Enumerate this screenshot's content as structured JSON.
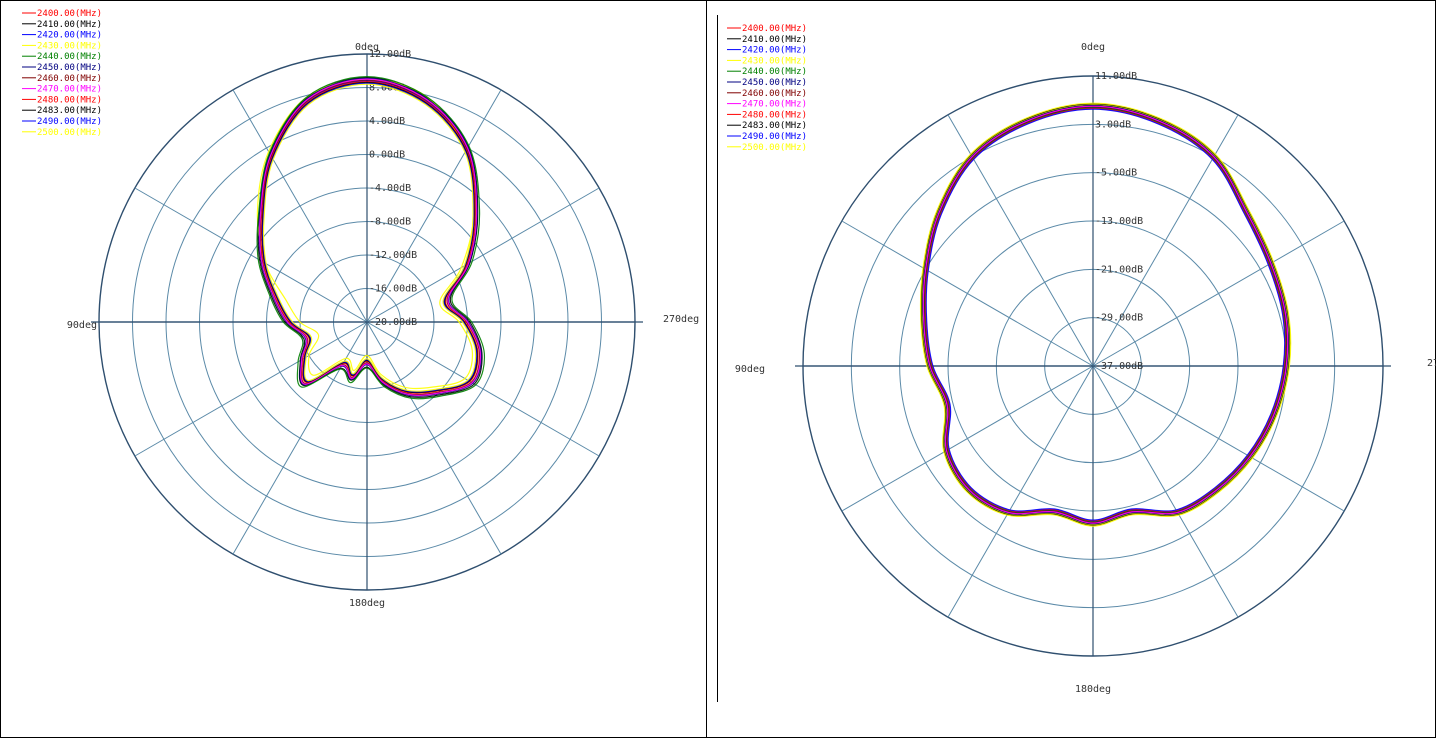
{
  "chart_data": [
    {
      "type": "polar-line",
      "angle_labels": [
        "0deg",
        "90deg",
        "180deg",
        "270deg"
      ],
      "rlabels": [
        "12.00dB",
        "8.00dB",
        "4.00dB",
        "0.00dB",
        "-4.00dB",
        "-8.00dB",
        "-12.00dB",
        "-16.00dB",
        "-20.00dB"
      ],
      "rlim": [
        -20,
        12
      ],
      "angles": [
        0,
        15,
        30,
        45,
        60,
        75,
        90,
        105,
        120,
        135,
        150,
        165,
        180,
        195,
        210,
        225,
        240,
        255,
        270,
        285,
        300,
        315,
        330,
        345
      ],
      "series": [
        {
          "name": "2400.00(MHz)",
          "color": "#ff0000",
          "values": [
            9,
            7.5,
            3,
            -2,
            -5.5,
            -8.5,
            -10.5,
            -12.5,
            -11,
            -9.5,
            -14,
            -13,
            -15,
            -12.5,
            -10,
            -8,
            -5.5,
            -6,
            -8,
            -10,
            -6,
            -1.5,
            4,
            7.5
          ]
        },
        {
          "name": "2410.00(MHz)",
          "color": "#000000",
          "values": [
            9.2,
            7.7,
            3.2,
            -1.8,
            -5.2,
            -8.2,
            -10.2,
            -12.2,
            -10.8,
            -9.3,
            -13.6,
            -12.8,
            -14.6,
            -12.2,
            -9.7,
            -7.7,
            -5.2,
            -5.8,
            -7.7,
            -9.7,
            -5.8,
            -1.3,
            4.2,
            7.7
          ]
        },
        {
          "name": "2420.00(MHz)",
          "color": "#0000ff",
          "values": [
            8.8,
            7.3,
            2.8,
            -2.3,
            -6,
            -9,
            -11,
            -13,
            -11.5,
            -10,
            -14.5,
            -13.5,
            -15.5,
            -13,
            -10.5,
            -8.5,
            -6,
            -6.5,
            -8.5,
            -10.5,
            -6.5,
            -2,
            3.8,
            7.3
          ]
        },
        {
          "name": "2430.00(MHz)",
          "color": "#ffff00",
          "values": [
            9,
            7.8,
            3.5,
            -1.5,
            -6,
            -10,
            -12,
            -14,
            -12,
            -11,
            -15,
            -14,
            -16,
            -13.5,
            -11,
            -9,
            -6.5,
            -7,
            -9,
            -11,
            -7,
            -2,
            3.5,
            7.8
          ]
        },
        {
          "name": "2440.00(MHz)",
          "color": "#008000",
          "values": [
            9.3,
            7.8,
            3.3,
            -1.7,
            -5,
            -8,
            -10,
            -12,
            -10.5,
            -9,
            -13.5,
            -12.5,
            -14.5,
            -12,
            -9.5,
            -7.5,
            -5,
            -5.5,
            -7.5,
            -9.5,
            -5.5,
            -1,
            4.3,
            7.8
          ]
        },
        {
          "name": "2450.00(MHz)",
          "color": "#000080",
          "values": [
            9.1,
            7.6,
            3.1,
            -1.9,
            -5.4,
            -8.4,
            -10.4,
            -12.4,
            -10.9,
            -9.4,
            -13.9,
            -12.9,
            -14.9,
            -12.4,
            -9.9,
            -7.9,
            -5.4,
            -5.9,
            -7.9,
            -9.9,
            -5.9,
            -1.4,
            4.1,
            7.6
          ]
        },
        {
          "name": "2460.00(MHz)",
          "color": "#800000",
          "values": [
            8.9,
            7.4,
            2.9,
            -2.1,
            -5.6,
            -8.6,
            -10.6,
            -12.6,
            -11.1,
            -9.6,
            -14.1,
            -13.1,
            -15.1,
            -12.6,
            -10.1,
            -8.1,
            -5.6,
            -6.1,
            -8.1,
            -10.1,
            -6.1,
            -1.6,
            3.9,
            7.4
          ]
        },
        {
          "name": "2470.00(MHz)",
          "color": "#ff00ff",
          "values": [
            9,
            7.5,
            3,
            -2,
            -5.5,
            -8.5,
            -10.5,
            -12.5,
            -11,
            -9.5,
            -14,
            -13,
            -15,
            -12.5,
            -10,
            -8,
            -5.5,
            -6,
            -8,
            -10,
            -6,
            -1.5,
            4,
            7.5
          ]
        },
        {
          "name": "2480.00(MHz)",
          "color": "#ff0000",
          "values": [
            8.7,
            7.2,
            2.7,
            -2.3,
            -5.8,
            -8.8,
            -10.8,
            -12.8,
            -11.3,
            -9.8,
            -14.3,
            -13.3,
            -15.3,
            -12.8,
            -10.3,
            -8.3,
            -5.8,
            -6.3,
            -8.3,
            -10.3,
            -6.3,
            -1.8,
            3.7,
            7.2
          ]
        },
        {
          "name": "2483.00(MHz)",
          "color": "#000000",
          "values": [
            8.6,
            7.1,
            2.6,
            -2.4,
            -5.9,
            -8.9,
            -10.9,
            -12.9,
            -11.4,
            -9.9,
            -14.4,
            -13.4,
            -15.4,
            -12.9,
            -10.4,
            -8.4,
            -5.9,
            -6.4,
            -8.4,
            -10.4,
            -6.4,
            -1.9,
            3.6,
            7.1
          ]
        },
        {
          "name": "2490.00(MHz)",
          "color": "#0000ff",
          "values": [
            8.5,
            7,
            2.5,
            -2.5,
            -6,
            -9,
            -11,
            -13,
            -11.5,
            -10,
            -14.5,
            -13.5,
            -15.5,
            -13,
            -10.5,
            -8.5,
            -6,
            -6.5,
            -8.5,
            -10.5,
            -6.5,
            -2,
            3.5,
            7
          ]
        },
        {
          "name": "2500.00(MHz)",
          "color": "#ffff00",
          "values": [
            8.4,
            6.9,
            2.4,
            -2.6,
            -6.1,
            -9.1,
            -11.1,
            -13.1,
            -11.6,
            -10.1,
            -14.6,
            -13.6,
            -15.6,
            -13.1,
            -10.6,
            -8.6,
            -6.1,
            -6.6,
            -8.6,
            -10.6,
            -6.6,
            -2.1,
            3.4,
            6.9
          ]
        }
      ]
    },
    {
      "type": "polar-line",
      "angle_labels": [
        "0deg",
        "90deg",
        "180deg",
        "270deg"
      ],
      "rlabels": [
        "11.00dB",
        "3.00dB",
        "-5.00dB",
        "-13.00dB",
        "-21.00dB",
        "-29.00dB",
        "-37.00dB"
      ],
      "rlim": [
        -37,
        11
      ],
      "angles": [
        0,
        15,
        30,
        45,
        60,
        75,
        90,
        105,
        120,
        135,
        150,
        165,
        180,
        195,
        210,
        225,
        240,
        255,
        270,
        285,
        300,
        315,
        330,
        345
      ],
      "series": [
        {
          "name": "2400.00(MHz)",
          "color": "#ff0000",
          "values": [
            6,
            5,
            3,
            -1,
            -5,
            -8,
            -10,
            -12,
            -9,
            -8,
            -9,
            -12,
            -11,
            -12,
            -9,
            -8,
            -7,
            -6,
            -5,
            -4,
            -3,
            -1,
            3,
            5
          ]
        },
        {
          "name": "2410.00(MHz)",
          "color": "#000000",
          "values": [
            6.2,
            5.2,
            3.2,
            -0.8,
            -4.8,
            -7.8,
            -9.8,
            -11.8,
            -8.8,
            -7.8,
            -8.8,
            -11.8,
            -10.8,
            -11.8,
            -8.8,
            -7.8,
            -6.8,
            -5.8,
            -4.8,
            -3.8,
            -2.8,
            -0.8,
            3.2,
            5.2
          ]
        },
        {
          "name": "2420.00(MHz)",
          "color": "#0000ff",
          "values": [
            5.8,
            4.8,
            2.8,
            -1.2,
            -5.2,
            -8.2,
            -10.2,
            -12.2,
            -9.2,
            -8.2,
            -9.2,
            -12.2,
            -11.2,
            -12.2,
            -9.2,
            -8.2,
            -7.2,
            -6.2,
            -5.2,
            -4.2,
            -3.2,
            -1.2,
            2.8,
            4.8
          ]
        },
        {
          "name": "2430.00(MHz)",
          "color": "#ffff00",
          "values": [
            6.3,
            5.3,
            3.3,
            -0.7,
            -4.7,
            -7.7,
            -9.7,
            -11.7,
            -8.7,
            -7.7,
            -8.7,
            -11.7,
            -10.7,
            -11.7,
            -8.7,
            -7.7,
            -6.7,
            -5.7,
            -4.7,
            -3.7,
            -2.7,
            -0.7,
            3.3,
            5.3
          ]
        },
        {
          "name": "2440.00(MHz)",
          "color": "#008000",
          "values": [
            5.7,
            4.7,
            2.7,
            -1.3,
            -5.3,
            -8.3,
            -10.3,
            -12.3,
            -9.3,
            -8.3,
            -9.3,
            -12.3,
            -11.3,
            -12.3,
            -9.3,
            -8.3,
            -7.3,
            -6.3,
            -5.3,
            -4.3,
            -3.3,
            -1.3,
            2.7,
            4.7
          ]
        },
        {
          "name": "2450.00(MHz)",
          "color": "#000080",
          "values": [
            6.1,
            5.1,
            3.1,
            -0.9,
            -4.9,
            -7.9,
            -9.9,
            -11.9,
            -8.9,
            -7.9,
            -8.9,
            -11.9,
            -10.9,
            -11.9,
            -8.9,
            -7.9,
            -6.9,
            -5.9,
            -4.9,
            -3.9,
            -2.9,
            -0.9,
            3.1,
            5.1
          ]
        },
        {
          "name": "2460.00(MHz)",
          "color": "#800000",
          "values": [
            5.9,
            4.9,
            2.9,
            -1.1,
            -5.1,
            -8.1,
            -10.1,
            -12.1,
            -9.1,
            -8.1,
            -9.1,
            -12.1,
            -11.1,
            -12.1,
            -9.1,
            -8.1,
            -7.1,
            -6.1,
            -5.1,
            -4.1,
            -3.1,
            -1.1,
            2.9,
            4.9
          ]
        },
        {
          "name": "2470.00(MHz)",
          "color": "#ff00ff",
          "values": [
            6,
            5,
            3,
            -1,
            -5,
            -8,
            -10,
            -12,
            -9,
            -8,
            -9,
            -12,
            -11,
            -12,
            -9,
            -8,
            -7,
            -6,
            -5,
            -4,
            -3,
            -1,
            3,
            5
          ]
        },
        {
          "name": "2480.00(MHz)",
          "color": "#ff0000",
          "values": [
            5.6,
            4.6,
            2.6,
            -1.4,
            -5.4,
            -8.4,
            -10.4,
            -12.4,
            -9.4,
            -8.4,
            -9.4,
            -12.4,
            -11.4,
            -12.4,
            -9.4,
            -8.4,
            -7.4,
            -6.4,
            -5.4,
            -4.4,
            -3.4,
            -1.4,
            2.6,
            4.6
          ]
        },
        {
          "name": "2483.00(MHz)",
          "color": "#000000",
          "values": [
            6.4,
            5.4,
            3.4,
            -0.6,
            -4.6,
            -7.6,
            -9.6,
            -11.6,
            -8.6,
            -7.6,
            -8.6,
            -11.6,
            -10.6,
            -11.6,
            -8.6,
            -7.6,
            -6.6,
            -5.6,
            -4.6,
            -3.6,
            -2.6,
            -0.6,
            3.4,
            5.4
          ]
        },
        {
          "name": "2490.00(MHz)",
          "color": "#0000ff",
          "values": [
            5.5,
            4.5,
            2.5,
            -1.5,
            -5.5,
            -8.5,
            -10.5,
            -12.5,
            -9.5,
            -8.5,
            -9.5,
            -12.5,
            -11.5,
            -12.5,
            -9.5,
            -8.5,
            -7.5,
            -6.5,
            -5.5,
            -4.5,
            -3.5,
            -1.5,
            2.5,
            4.5
          ]
        },
        {
          "name": "2500.00(MHz)",
          "color": "#ffff00",
          "values": [
            6.5,
            5.5,
            3.5,
            -0.5,
            -4.5,
            -7.5,
            -9.5,
            -11.5,
            -8.5,
            -7.5,
            -8.5,
            -11.5,
            -10.5,
            -11.5,
            -8.5,
            -7.5,
            -6.5,
            -5.5,
            -4.5,
            -3.5,
            -2.5,
            -0.5,
            3.5,
            5.5
          ]
        }
      ]
    }
  ]
}
